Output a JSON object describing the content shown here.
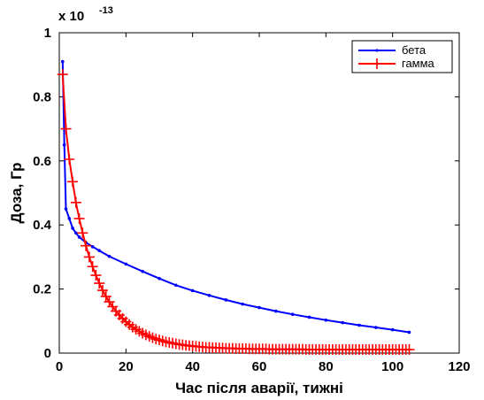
{
  "chart_data": {
    "type": "line",
    "title": "",
    "xlabel": "Час після аварії, тижні",
    "ylabel": "Доза, Гр",
    "xlim": [
      0,
      120
    ],
    "ylim": [
      0,
      1
    ],
    "x_ticks": [
      "0",
      "20",
      "40",
      "60",
      "80",
      "100",
      "120"
    ],
    "y_ticks": [
      "0",
      "0.2",
      "0.4",
      "0.6",
      "0.8",
      "1"
    ],
    "y_multiplier": {
      "base": "x 10",
      "exponent": "-13"
    },
    "grid": false,
    "legend": {
      "position": "top-right",
      "entries": [
        "бета",
        "гамма"
      ]
    },
    "series": [
      {
        "name": "бета",
        "color": "#0000ff",
        "marker": "dot",
        "x": [
          1,
          1.5,
          2,
          3,
          4,
          5,
          6,
          8,
          10,
          12,
          15,
          20,
          25,
          30,
          35,
          40,
          45,
          50,
          55,
          60,
          65,
          70,
          75,
          80,
          85,
          90,
          95,
          100,
          105
        ],
        "y": [
          0.91,
          0.65,
          0.45,
          0.42,
          0.39,
          0.375,
          0.362,
          0.345,
          0.332,
          0.32,
          0.302,
          0.278,
          0.255,
          0.233,
          0.212,
          0.195,
          0.18,
          0.166,
          0.153,
          0.142,
          0.131,
          0.121,
          0.112,
          0.103,
          0.095,
          0.087,
          0.08,
          0.073,
          0.065
        ]
      },
      {
        "name": "гамма",
        "color": "#ff0000",
        "marker": "plus",
        "x": [
          1,
          2,
          3,
          4,
          5,
          6,
          7,
          8,
          9,
          10,
          11,
          12,
          13,
          14,
          15,
          16,
          17,
          18,
          19,
          20,
          21,
          22,
          23,
          24,
          25,
          26,
          27,
          28,
          29,
          30,
          31,
          32,
          33,
          34,
          35,
          36,
          37,
          38,
          39,
          40,
          41,
          42,
          43,
          44,
          45,
          46,
          47,
          48,
          49,
          50,
          51,
          52,
          53,
          54,
          55,
          56,
          57,
          58,
          59,
          60,
          61,
          62,
          63,
          64,
          65,
          66,
          67,
          68,
          69,
          70,
          71,
          72,
          73,
          74,
          75,
          76,
          77,
          78,
          79,
          80,
          81,
          82,
          83,
          84,
          85,
          86,
          87,
          88,
          89,
          90,
          91,
          92,
          93,
          94,
          95,
          96,
          97,
          98,
          99,
          100,
          101,
          102,
          103,
          104,
          105
        ],
        "y": [
          0.87,
          0.7,
          0.605,
          0.535,
          0.47,
          0.42,
          0.375,
          0.335,
          0.3,
          0.27,
          0.243,
          0.218,
          0.196,
          0.177,
          0.16,
          0.145,
          0.131,
          0.119,
          0.108,
          0.098,
          0.089,
          0.081,
          0.074,
          0.068,
          0.062,
          0.057,
          0.052,
          0.048,
          0.044,
          0.041,
          0.038,
          0.035,
          0.033,
          0.031,
          0.029,
          0.027,
          0.026,
          0.024,
          0.023,
          0.022,
          0.021,
          0.02,
          0.019,
          0.018,
          0.018,
          0.017,
          0.017,
          0.016,
          0.016,
          0.015,
          0.015,
          0.015,
          0.014,
          0.014,
          0.014,
          0.014,
          0.013,
          0.013,
          0.013,
          0.013,
          0.013,
          0.013,
          0.012,
          0.012,
          0.012,
          0.012,
          0.012,
          0.012,
          0.012,
          0.012,
          0.012,
          0.012,
          0.012,
          0.011,
          0.011,
          0.011,
          0.011,
          0.011,
          0.011,
          0.011,
          0.011,
          0.011,
          0.011,
          0.011,
          0.011,
          0.011,
          0.011,
          0.011,
          0.011,
          0.011,
          0.011,
          0.011,
          0.011,
          0.011,
          0.011,
          0.011,
          0.011,
          0.011,
          0.011,
          0.011,
          0.011,
          0.011,
          0.011,
          0.011,
          0.011
        ]
      }
    ]
  }
}
